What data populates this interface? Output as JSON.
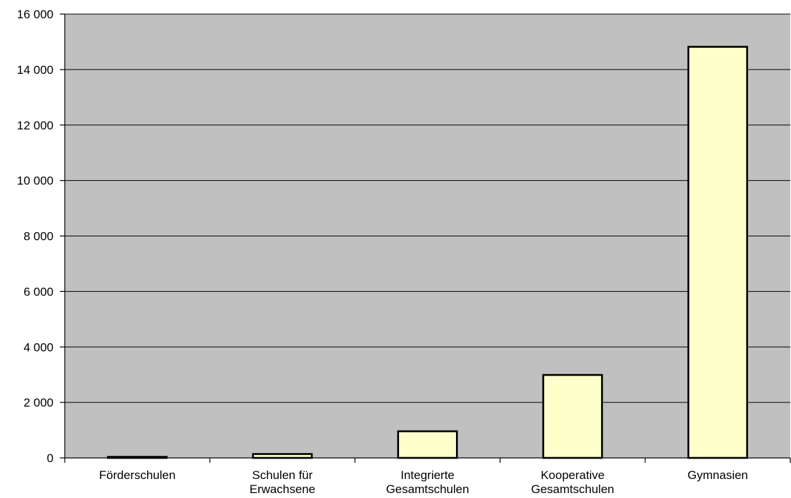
{
  "chart_data": {
    "type": "bar",
    "title": "",
    "xlabel": "",
    "ylabel": "",
    "categories": [
      [
        "Förderschulen"
      ],
      [
        "Schulen für",
        "Erwachsene"
      ],
      [
        "Integrierte",
        "Gesamtschulen"
      ],
      [
        "Kooperative",
        "Gesamtschulen"
      ],
      [
        "Gymnasien"
      ]
    ],
    "values": [
      20,
      140,
      960,
      2990,
      14820
    ],
    "ylim": [
      0,
      16000
    ],
    "yticks": [
      0,
      2000,
      4000,
      6000,
      8000,
      10000,
      12000,
      14000,
      16000
    ],
    "ytick_labels": [
      "0",
      "2 000",
      "4 000",
      "6 000",
      "8 000",
      "10 000",
      "12 000",
      "14 000",
      "16 000"
    ],
    "grid": true,
    "legend": "none",
    "colors": {
      "plot_background": "#c0c0c0",
      "bar_fill": "#ffffcc",
      "bar_stroke": "#000000",
      "gridline": "#000000"
    }
  }
}
